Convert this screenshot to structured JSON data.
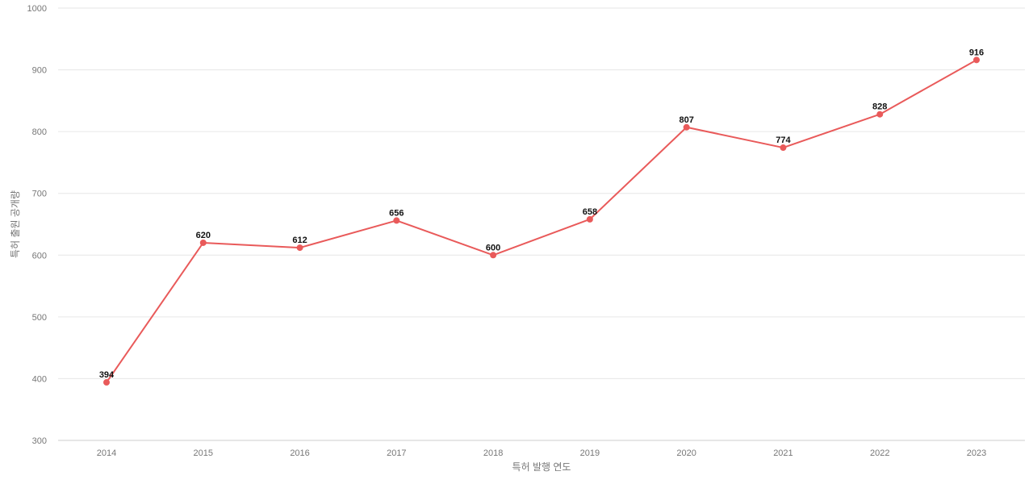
{
  "chart_data": {
    "type": "line",
    "title": "",
    "xlabel": "특허 발행 연도",
    "ylabel": "특허 출원 공개량",
    "categories": [
      "2014",
      "2015",
      "2016",
      "2017",
      "2018",
      "2019",
      "2020",
      "2021",
      "2022",
      "2023"
    ],
    "series": [
      {
        "values": [
          394,
          620,
          612,
          656,
          600,
          658,
          807,
          774,
          828,
          916
        ],
        "color": "#e95a5a"
      }
    ],
    "ylim": [
      300,
      1000
    ],
    "yticks": [
      300,
      400,
      500,
      600,
      700,
      800,
      900,
      1000
    ],
    "grid": true,
    "legend": "none",
    "data_labels": true
  }
}
